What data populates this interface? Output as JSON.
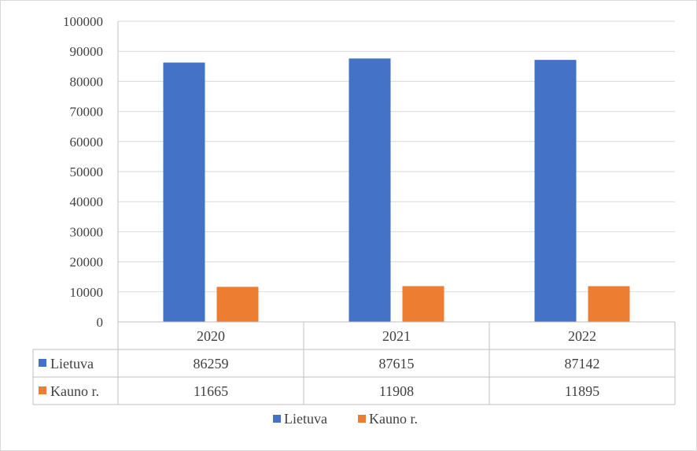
{
  "chart_data": {
    "type": "bar",
    "categories": [
      "2020",
      "2021",
      "2022"
    ],
    "series": [
      {
        "name": "Lietuva",
        "values": [
          86259,
          87615,
          87142
        ],
        "color": "#4472c4"
      },
      {
        "name": "Kauno r.",
        "values": [
          11665,
          11908,
          11895
        ],
        "color": "#ed7d31"
      }
    ],
    "ylim": [
      0,
      100000
    ],
    "yticks": [
      0,
      10000,
      20000,
      30000,
      40000,
      50000,
      60000,
      70000,
      80000,
      90000,
      100000
    ],
    "grid": true,
    "data_table": true,
    "legend": "bottom"
  }
}
